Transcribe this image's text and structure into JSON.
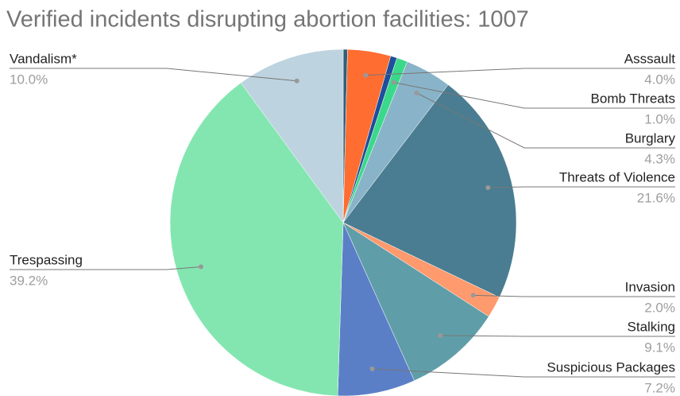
{
  "chart_data": {
    "type": "pie",
    "title": "Verified incidents disrupting abortion facilities: 1007",
    "categories": [
      null,
      "Asssault",
      null,
      "Bomb Threats",
      "Burglary",
      "Threats of Violence",
      "Invasion",
      "Stalking",
      "Suspicious Packages",
      "Trespassing",
      "Vandalism*"
    ],
    "values": [
      0.4,
      4.0,
      0.6,
      1.0,
      4.3,
      21.6,
      2.0,
      9.1,
      7.2,
      39.2,
      10.0
    ],
    "value_labels": [
      null,
      "4.0%",
      null,
      "1.0%",
      "4.3%",
      "21.6%",
      "2.0%",
      "9.1%",
      "7.2%",
      "39.2%",
      "10.0%"
    ],
    "colors": [
      "#2f5f7a",
      "#ff6d31",
      "#1f4e9c",
      "#3ad98a",
      "#89b3c8",
      "#4a7d91",
      "#ff9a6e",
      "#5f9ea8",
      "#5b7fc7",
      "#83e6b0",
      "#bdd3df"
    ]
  }
}
